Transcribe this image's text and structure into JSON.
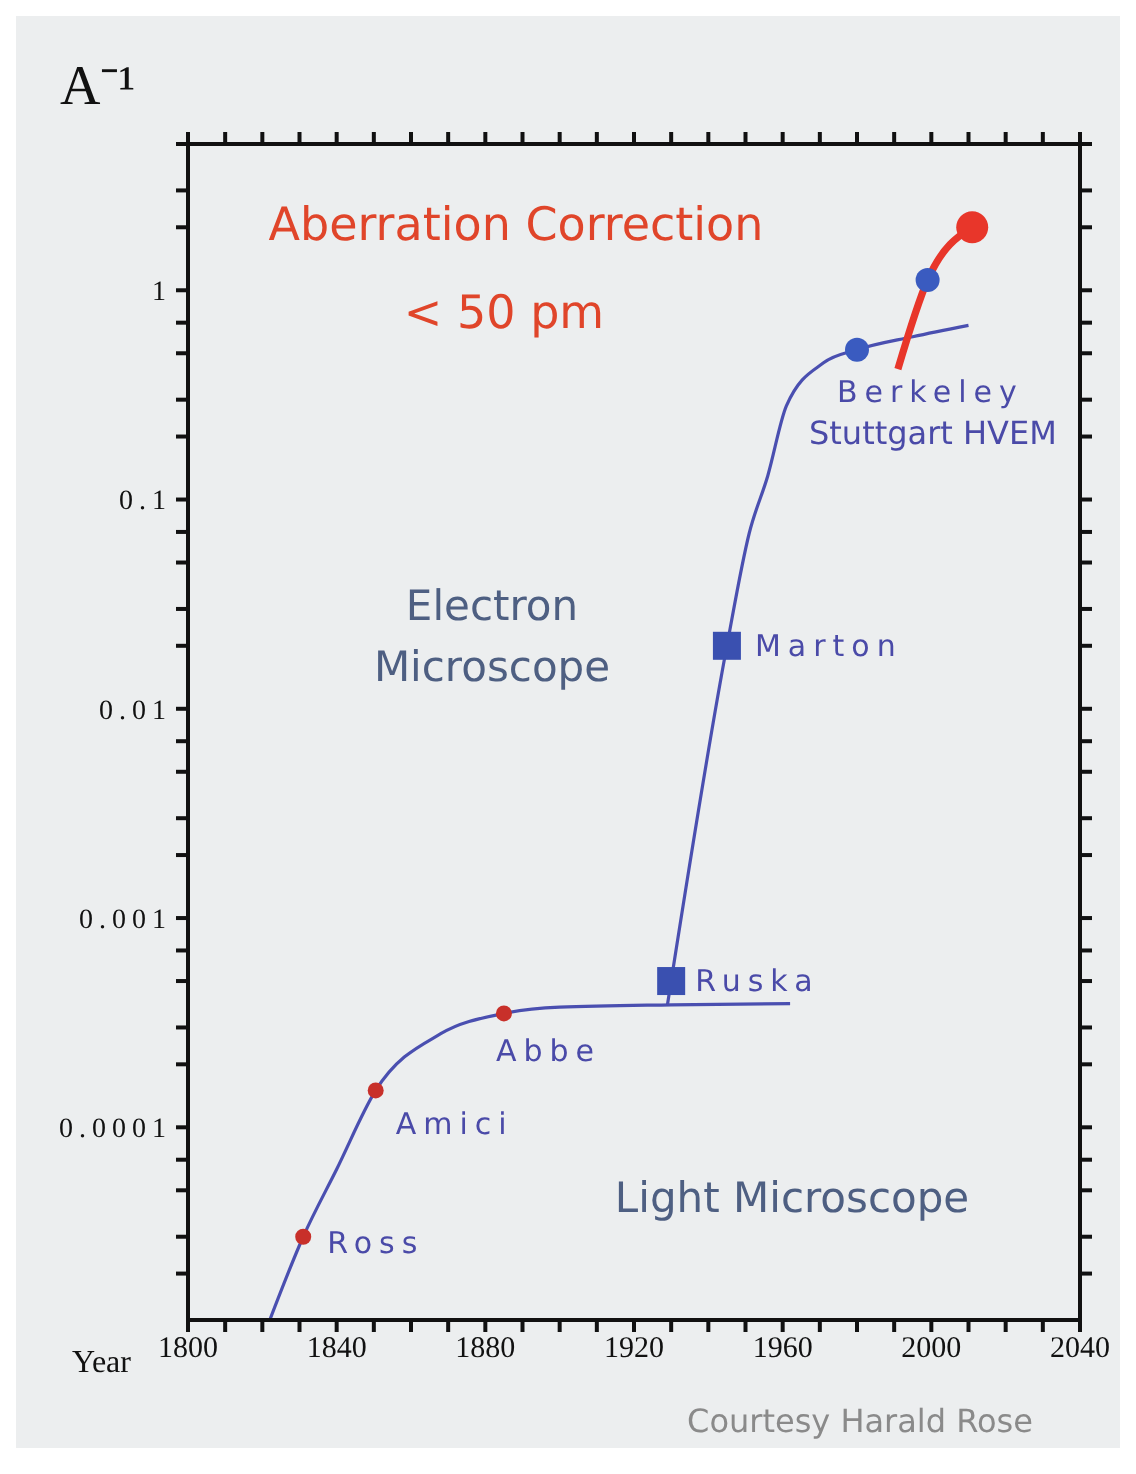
{
  "chart_data": {
    "type": "line",
    "xlabel": "Year",
    "ylabel": "A⁻¹",
    "log": "y",
    "marker": "none",
    "xlim": [
      1800,
      2040
    ],
    "xticks": [
      1800,
      {
        "value": 1810,
        "label": null
      },
      {
        "value": 1820,
        "label": null
      },
      {
        "value": 1830,
        "label": null
      },
      1840,
      {
        "value": 1850,
        "label": null
      },
      {
        "value": 1860,
        "label": null
      },
      {
        "value": 1870,
        "label": null
      },
      1880,
      {
        "value": 1890,
        "label": null
      },
      {
        "value": 1900,
        "label": null
      },
      {
        "value": 1910,
        "label": null
      },
      1920,
      {
        "value": 1930,
        "label": null
      },
      {
        "value": 1940,
        "label": null
      },
      {
        "value": 1950,
        "label": null
      },
      1960,
      {
        "value": 1970,
        "label": null
      },
      {
        "value": 1980,
        "label": null
      },
      {
        "value": 1990,
        "label": null
      },
      2000,
      {
        "value": 2010,
        "label": null
      },
      {
        "value": 2020,
        "label": null
      },
      {
        "value": 2030,
        "label": null
      },
      2040
    ],
    "ylim": [
      1.2e-05,
      5
    ],
    "yticks": [
      {
        "value": 2e-05,
        "label": null
      },
      {
        "value": 3e-05,
        "label": null
      },
      {
        "value": 5e-05,
        "label": null
      },
      {
        "value": 7e-05,
        "label": null
      },
      0.0001,
      {
        "value": 0.0002,
        "label": null
      },
      {
        "value": 0.0003,
        "label": null
      },
      {
        "value": 0.0005,
        "label": null
      },
      {
        "value": 0.0007,
        "label": null
      },
      0.001,
      {
        "value": 0.002,
        "label": null
      },
      {
        "value": 0.003,
        "label": null
      },
      {
        "value": 0.005,
        "label": null
      },
      {
        "value": 0.007,
        "label": null
      },
      0.01,
      {
        "value": 0.02,
        "label": null
      },
      {
        "value": 0.03,
        "label": null
      },
      {
        "value": 0.05,
        "label": null
      },
      {
        "value": 0.07,
        "label": null
      },
      0.1,
      {
        "value": 0.2,
        "label": null
      },
      {
        "value": 0.3,
        "label": null
      },
      {
        "value": 0.5,
        "label": null
      },
      {
        "value": 0.7,
        "label": null
      },
      1,
      {
        "value": 2,
        "label": null
      },
      {
        "value": 3,
        "label": null
      },
      {
        "value": 5,
        "label": null
      }
    ],
    "series": [
      {
        "color": "#4a4fb0",
        "x": [
          1822,
          1831,
          1840,
          1850.5,
          1868,
          1885,
          1900,
          1930,
          1962
        ],
        "values": [
          1.2e-05,
          3e-05,
          6.3e-05,
          0.00015,
          0.00028,
          0.00035,
          0.000375,
          0.000385,
          0.00039
        ]
      },
      {
        "color": "#4a4fb0",
        "x": [
          1929,
          1930,
          1945,
          1951,
          1956,
          1961,
          1971,
          1980,
          1995,
          2010
        ],
        "values": [
          0.000385,
          0.0005,
          0.02,
          0.069,
          0.13,
          0.28,
          0.45,
          0.52,
          0.6,
          0.68
        ]
      },
      {
        "color": "#e8362a",
        "x": [
          1991,
          1999,
          2011
        ],
        "values": [
          0.42,
          1.12,
          2
        ]
      },
      {
        "type": "scatter",
        "marker": "circle",
        "color": "#c8302a",
        "x": [
          1831,
          1850.5,
          1885
        ],
        "values": [
          3e-05,
          0.00015,
          0.00035
        ]
      },
      {
        "type": "scatter",
        "marker": "square",
        "color": "#3a50b0",
        "x": [
          1930,
          1945
        ],
        "values": [
          0.0005,
          0.02
        ]
      },
      {
        "type": "scatter",
        "marker": "circle",
        "color": "#3a5bc0",
        "x": [
          1980,
          1999
        ],
        "values": [
          0.52,
          1.12
        ]
      },
      {
        "type": "scatter",
        "marker": "circle",
        "color": "#e8362a",
        "x": [
          2011
        ],
        "values": [
          2
        ]
      }
    ],
    "annotations": [
      {
        "text": "Ross",
        "x": 1831,
        "y": 3e-05
      },
      {
        "text": "Amici",
        "x": 1850.5,
        "y": 0.00015
      },
      {
        "text": "Abbe",
        "x": 1885,
        "y": 0.00035
      },
      {
        "text": "Ruska",
        "x": 1930,
        "y": 0.0005
      },
      {
        "text": "Marton",
        "x": 1945,
        "y": 0.02
      },
      {
        "text": "Berkeley",
        "x": 1980,
        "y": 0.52
      },
      {
        "text": "Stuttgart HVEM",
        "x": 1980,
        "y": 0.52
      },
      "Aberration Correction",
      "< 50 pm",
      "Electron Microscope",
      "Light Microscope",
      "Courtesy Harald Rose"
    ]
  }
}
